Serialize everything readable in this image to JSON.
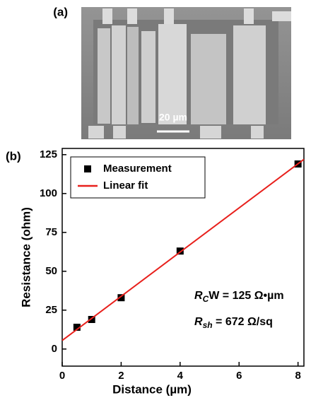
{
  "figure": {
    "panel_a": {
      "label": "(a)",
      "scale_bar": "20 µm"
    },
    "panel_b": {
      "label": "(b)"
    }
  },
  "chart_data": {
    "type": "scatter",
    "x_label": "Distance (µm)",
    "y_label": "Resistance (ohm)",
    "series": [
      {
        "name": "Measurement",
        "color": "#000000",
        "marker": "square",
        "x": [
          0.5,
          1,
          2,
          4,
          8
        ],
        "values": [
          14,
          19,
          33,
          63,
          119
        ]
      },
      {
        "name": "Linear fit",
        "color": "#e8201c",
        "line": true,
        "x": [
          0,
          8.2
        ],
        "values": [
          5.5,
          122
        ]
      }
    ],
    "annotations": [
      {
        "parts": [
          "R",
          "C",
          "W = 125 Ω•µm"
        ]
      },
      {
        "parts": [
          "R",
          "sh",
          " = 672 Ω/sq"
        ]
      }
    ],
    "xlim": [
      0,
      8.2
    ],
    "xticks": [
      0,
      2,
      4,
      6,
      8
    ],
    "ylim": [
      -11,
      129
    ],
    "yticks": [
      0,
      25,
      50,
      75,
      100,
      125
    ],
    "legend": "upper-left"
  }
}
